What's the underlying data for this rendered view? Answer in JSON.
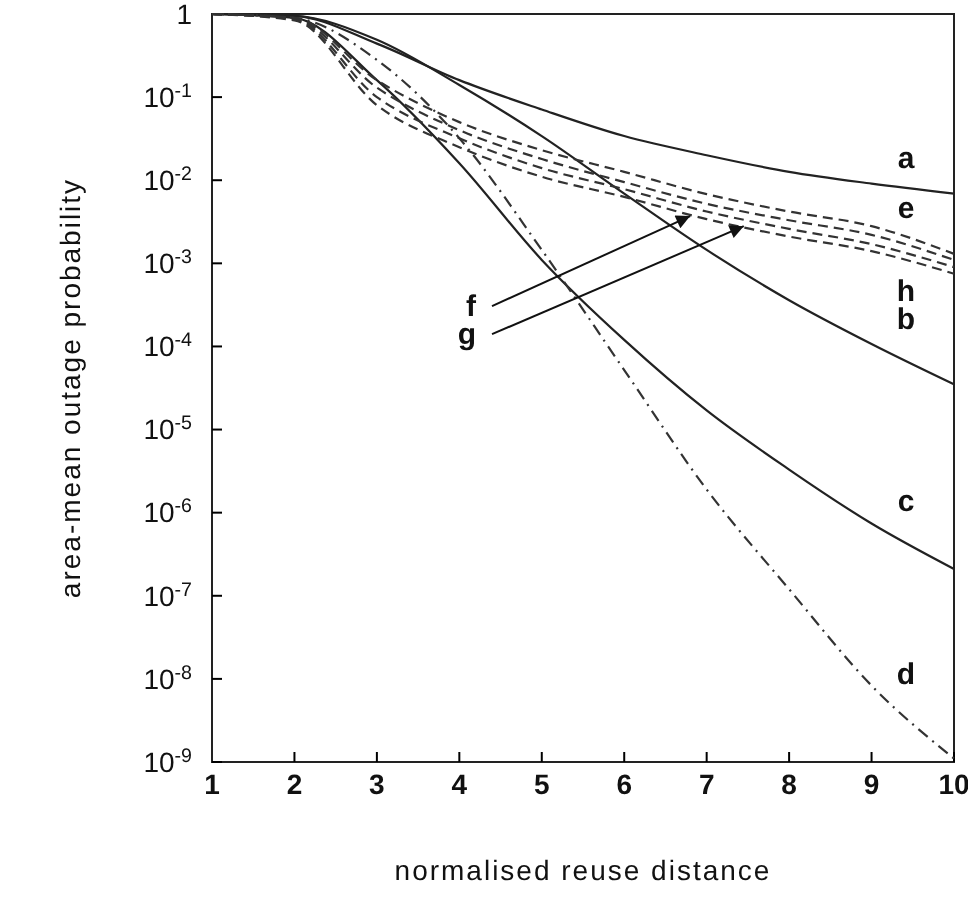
{
  "chart_data": {
    "type": "line",
    "xlabel": "normalised reuse distance",
    "ylabel": "area-mean outage probability",
    "log": "y",
    "grid": false,
    "marker": "none",
    "xlim": [
      1,
      10
    ],
    "ylim": [
      1e-09,
      1
    ],
    "xticks": [
      1,
      2,
      3,
      4,
      5,
      6,
      7,
      8,
      9,
      10
    ],
    "yticks": [
      1,
      {
        "value": 0.1,
        "label": "10$^{-1}$"
      },
      {
        "value": 0.01,
        "label": "10$^{-2}$"
      },
      {
        "value": 0.001,
        "label": "10$^{-3}$"
      },
      {
        "value": 0.0001,
        "label": "10$^{-4}$"
      },
      {
        "value": 1e-05,
        "label": "10$^{-5}$"
      },
      {
        "value": 1e-06,
        "label": "10$^{-6}$"
      },
      {
        "value": 1e-07,
        "label": "10$^{-7}$"
      },
      {
        "value": 1e-08,
        "label": "10$^{-8}$"
      },
      {
        "value": 1e-09,
        "label": "10$^{-9}$"
      }
    ],
    "x": [
      1,
      2,
      3,
      4,
      5,
      6,
      7,
      8,
      9,
      10
    ],
    "series": [
      {
        "name": "a",
        "color": "#222222",
        "line_style": "solid",
        "values": [
          1,
          0.95,
          0.44,
          0.16,
          0.071,
          0.034,
          0.02,
          0.0126,
          0.0091,
          0.0069
        ]
      },
      {
        "name": "b",
        "color": "#222222",
        "line_style": "solid",
        "values": [
          1,
          0.95,
          0.49,
          0.14,
          0.034,
          0.0069,
          0.00145,
          0.00036,
          0.000107,
          3.5e-05
        ]
      },
      {
        "name": "c",
        "color": "#222222",
        "line_style": "solid",
        "values": [
          1,
          0.9,
          0.16,
          0.016,
          0.0011,
          0.00012,
          1.7e-05,
          3.3e-06,
          7.4e-07,
          2.1e-07
        ]
      },
      {
        "name": "d",
        "color": "#333333",
        "line_style": "dotted",
        "values": [
          1,
          0.9,
          0.28,
          0.032,
          0.00145,
          5.2e-05,
          1.9e-06,
          1.2e-07,
          8.3e-09,
          1.1e-09
        ]
      },
      {
        "name": "e",
        "color": "#333333",
        "line_style": "dashed",
        "values": [
          1,
          0.9,
          0.16,
          0.05,
          0.023,
          0.0126,
          0.0068,
          0.0042,
          0.0028,
          0.0013
        ]
      },
      {
        "color": "#333333",
        "line_style": "dashed",
        "values": [
          1,
          0.88,
          0.13,
          0.04,
          0.018,
          0.0095,
          0.0052,
          0.0033,
          0.0022,
          0.0011
        ]
      },
      {
        "color": "#333333",
        "line_style": "dashed",
        "values": [
          1,
          0.86,
          0.1,
          0.032,
          0.014,
          0.0078,
          0.0042,
          0.0026,
          0.0017,
          0.0009
        ]
      },
      {
        "name": "h",
        "color": "#333333",
        "line_style": "dashed",
        "values": [
          1,
          0.84,
          0.08,
          0.025,
          0.011,
          0.0063,
          0.0034,
          0.0021,
          0.0014,
          0.00075
        ]
      }
    ],
    "annotations": [
      {
        "text": "f",
        "x": 6.8,
        "y": 0.0037
      },
      {
        "text": "g",
        "x": 7.45,
        "y": 0.0028
      }
    ]
  }
}
